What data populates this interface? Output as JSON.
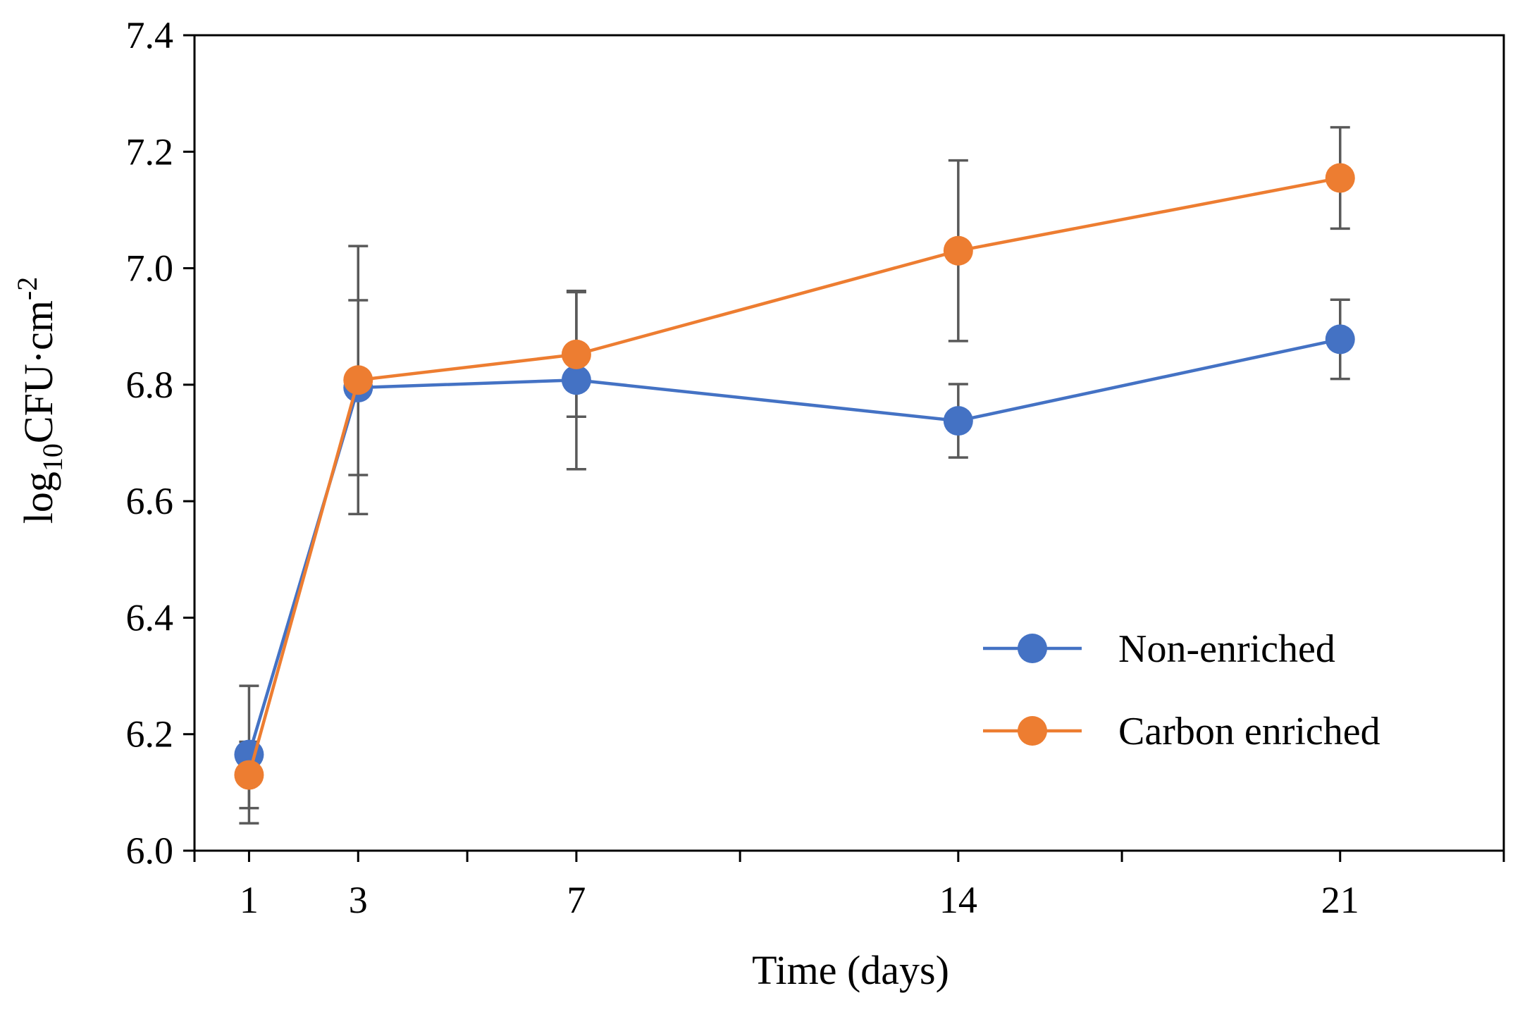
{
  "chart_data": {
    "type": "line",
    "title": "",
    "xlabel": "Time (days)",
    "ylabel": {
      "base": "log",
      "sub": "10",
      "main": "CFU·cm",
      "sup": "-2"
    },
    "x": [
      1,
      3,
      7,
      14,
      21
    ],
    "xticks": [
      1,
      3,
      7,
      14,
      21
    ],
    "xtick_labels": [
      "1",
      "3",
      "7",
      "14",
      "21"
    ],
    "xlim": [
      0,
      24
    ],
    "minor_x": [
      0,
      5,
      10,
      17,
      24
    ],
    "ylim": [
      6.0,
      7.4
    ],
    "yticks": [
      6.0,
      6.2,
      6.4,
      6.6,
      6.8,
      7.0,
      7.2,
      7.4
    ],
    "ytick_labels": [
      "6.0",
      "6.2",
      "6.4",
      "6.6",
      "6.8",
      "7.0",
      "7.2",
      "7.4"
    ],
    "grid": false,
    "legend_position": "lower-right",
    "series": [
      {
        "name": "Non-enriched",
        "color": "#4472C4",
        "values": [
          6.165,
          6.795,
          6.808,
          6.738,
          6.878
        ],
        "error": [
          0.118,
          0.15,
          0.153,
          0.063,
          0.068
        ]
      },
      {
        "name": "Carbon enriched",
        "color": "#ED7D31",
        "values": [
          6.13,
          6.808,
          6.852,
          7.03,
          7.155
        ],
        "error": [
          0.057,
          0.23,
          0.107,
          0.155,
          0.087
        ]
      }
    ],
    "error_bar_color": "#595959"
  }
}
